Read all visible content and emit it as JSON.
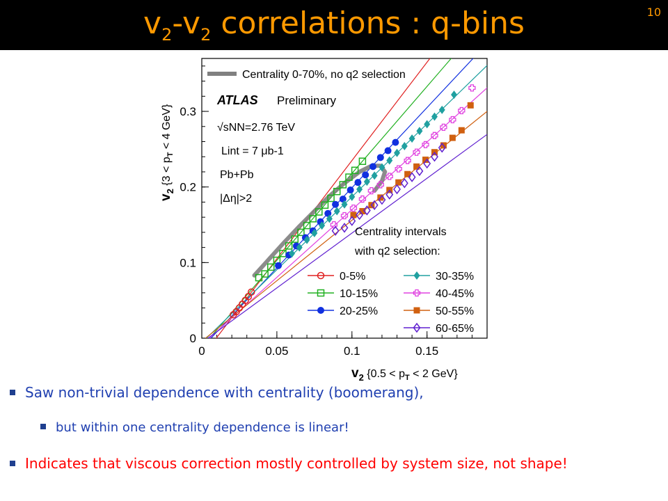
{
  "slide": {
    "title_v": "v",
    "title_sub": "2",
    "title_dash": "-v",
    "title_sub2": "2",
    "title_rest": " correlations : q-bins",
    "page_number": "10",
    "accent_color": "#ff9900",
    "bullets": [
      "Saw non-trivial dependence with centrality (boomerang),",
      "but within one centrality dependence is linear!",
      "Indicates that viscous correction mostly controlled by system size, not shape!"
    ]
  },
  "chart_data": {
    "type": "scatter",
    "xlabel": "v2 {0.5 < pT < 2 GeV}",
    "ylabel": "v2 {3 < pT < 4 GeV}",
    "xlim": [
      0,
      0.19
    ],
    "ylim": [
      0,
      0.37
    ],
    "xticks": [
      "0",
      "0.05",
      "0.1",
      "0.15"
    ],
    "yticks": [
      "0",
      "0.1",
      "0.2",
      "0.3"
    ],
    "annotations": {
      "boomerang_legend": "Centrality 0-70%, no q2 selection",
      "experiment": "ATLAS",
      "status": "Preliminary",
      "energy": "√sNN=2.76 TeV",
      "luminosity": "Lint = 7 μb-1",
      "system": "Pb+Pb",
      "cut": "|Δη|>2",
      "legend_title_1": "Centrality intervals",
      "legend_title_2": "with q2 selection:"
    },
    "legend_position": "bottom-right",
    "boomerang": {
      "color": "#808080",
      "x": [
        0.035,
        0.045,
        0.055,
        0.065,
        0.075,
        0.085,
        0.095,
        0.105,
        0.113,
        0.119,
        0.122,
        0.12,
        0.115
      ],
      "y": [
        0.083,
        0.105,
        0.127,
        0.148,
        0.168,
        0.188,
        0.205,
        0.22,
        0.228,
        0.228,
        0.22,
        0.208,
        0.195
      ]
    },
    "series": [
      {
        "name": "0-5%",
        "color": "#e02020",
        "marker": "circle-open",
        "slope": 2.6,
        "intercept": -0.025,
        "x": [
          0.021,
          0.023,
          0.025,
          0.027,
          0.029,
          0.031,
          0.033
        ],
        "y": [
          0.031,
          0.035,
          0.04,
          0.045,
          0.05,
          0.055,
          0.061
        ]
      },
      {
        "name": "10-15%",
        "color": "#20b020",
        "marker": "square-open",
        "slope": 2.3,
        "intercept": -0.012,
        "x": [
          0.038,
          0.042,
          0.046,
          0.05,
          0.054,
          0.058,
          0.062,
          0.066,
          0.07,
          0.074,
          0.078,
          0.082,
          0.086,
          0.09,
          0.094,
          0.098,
          0.102,
          0.107
        ],
        "y": [
          0.08,
          0.085,
          0.094,
          0.103,
          0.112,
          0.122,
          0.131,
          0.14,
          0.149,
          0.158,
          0.167,
          0.176,
          0.185,
          0.194,
          0.203,
          0.213,
          0.222,
          0.234
        ]
      },
      {
        "name": "20-25%",
        "color": "#1030e0",
        "marker": "circle-filled",
        "slope": 2.12,
        "intercept": -0.013,
        "x": [
          0.051,
          0.058,
          0.063,
          0.069,
          0.074,
          0.079,
          0.084,
          0.089,
          0.094,
          0.099,
          0.104,
          0.109,
          0.114,
          0.119,
          0.124,
          0.129
        ],
        "y": [
          0.096,
          0.11,
          0.122,
          0.133,
          0.142,
          0.154,
          0.165,
          0.177,
          0.184,
          0.196,
          0.206,
          0.216,
          0.227,
          0.239,
          0.248,
          0.259
        ]
      },
      {
        "name": "30-35%",
        "color": "#20a0a0",
        "marker": "diamond-filled",
        "slope": 1.93,
        "intercept": -0.006,
        "x": [
          0.06,
          0.065,
          0.07,
          0.075,
          0.08,
          0.085,
          0.09,
          0.095,
          0.1,
          0.105,
          0.11,
          0.115,
          0.12,
          0.125,
          0.13,
          0.135,
          0.14,
          0.145,
          0.15,
          0.155,
          0.16,
          0.168
        ],
        "y": [
          0.112,
          0.12,
          0.13,
          0.139,
          0.149,
          0.158,
          0.168,
          0.177,
          0.187,
          0.197,
          0.207,
          0.215,
          0.226,
          0.235,
          0.245,
          0.254,
          0.264,
          0.274,
          0.283,
          0.293,
          0.302,
          0.322
        ]
      },
      {
        "name": "40-45%",
        "color": "#e040e0",
        "marker": "cross-open",
        "slope": 1.79,
        "intercept": -0.009,
        "x": [
          0.088,
          0.095,
          0.101,
          0.107,
          0.113,
          0.119,
          0.125,
          0.131,
          0.137,
          0.143,
          0.149,
          0.155,
          0.161,
          0.167,
          0.173,
          0.18
        ],
        "y": [
          0.15,
          0.162,
          0.172,
          0.184,
          0.195,
          0.203,
          0.214,
          0.224,
          0.235,
          0.246,
          0.256,
          0.268,
          0.279,
          0.289,
          0.301,
          0.331
        ]
      },
      {
        "name": "50-55%",
        "color": "#d06010",
        "marker": "square-filled",
        "slope": 1.6,
        "intercept": -0.004,
        "x": [
          0.101,
          0.107,
          0.113,
          0.119,
          0.125,
          0.131,
          0.137,
          0.143,
          0.149,
          0.155,
          0.161,
          0.167,
          0.173,
          0.179
        ],
        "y": [
          0.163,
          0.168,
          0.176,
          0.186,
          0.196,
          0.206,
          0.217,
          0.227,
          0.236,
          0.246,
          0.255,
          0.265,
          0.275,
          0.308
        ]
      },
      {
        "name": "60-65%",
        "color": "#6020d0",
        "marker": "diamond-open",
        "slope": 1.45,
        "intercept": -0.006,
        "x": [
          0.089,
          0.095,
          0.1,
          0.105,
          0.11,
          0.115,
          0.12,
          0.125,
          0.13,
          0.135,
          0.14,
          0.145,
          0.15,
          0.155,
          0.16
        ],
        "y": [
          0.142,
          0.146,
          0.155,
          0.163,
          0.169,
          0.176,
          0.183,
          0.19,
          0.197,
          0.205,
          0.213,
          0.221,
          0.231,
          0.24,
          0.252
        ]
      }
    ]
  }
}
